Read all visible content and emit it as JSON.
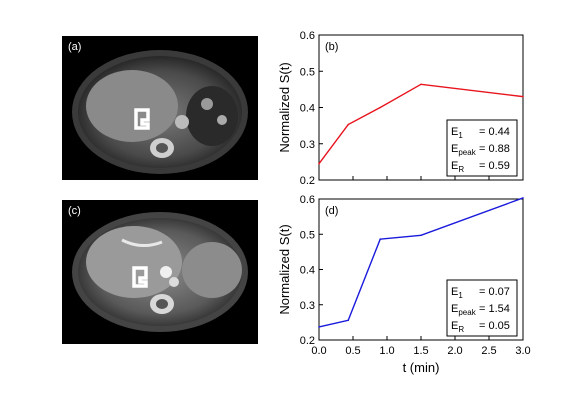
{
  "images": [
    {
      "label": "(a)",
      "description_icon": "mri-axial-abdomen"
    },
    {
      "label": "(c)",
      "description_icon": "mri-axial-abdomen-contrast"
    }
  ],
  "chart_data": [
    {
      "type": "line",
      "panel_label": "(b)",
      "x": [
        0.0,
        0.43,
        0.9,
        1.5,
        3.0
      ],
      "series": [
        {
          "color": "#e8141e",
          "values": [
            0.245,
            0.353,
            0.4,
            0.464,
            0.43
          ]
        }
      ],
      "ylabel": "Normalized S(t)",
      "xlabel": "",
      "xlim": [
        0.0,
        3.0
      ],
      "ylim": [
        0.2,
        0.6
      ],
      "yticks": [
        "0.2",
        "0.3",
        "0.4",
        "0.5",
        "0.6"
      ],
      "xticks": [],
      "annotation": [
        {
          "sym": "E",
          "sub": "1",
          "text": "= 0.44"
        },
        {
          "sym": "E",
          "sub": "peak",
          "text": "= 0.88"
        },
        {
          "sym": "E",
          "sub": "R",
          "text": "= 0.59"
        }
      ]
    },
    {
      "type": "line",
      "panel_label": "(d)",
      "x": [
        0.0,
        0.43,
        0.9,
        1.5,
        3.0
      ],
      "series": [
        {
          "color": "#1a1adc",
          "values": [
            0.237,
            0.256,
            0.486,
            0.497,
            0.603
          ]
        }
      ],
      "ylabel": "Normalized S(t)",
      "xlabel": "t (min)",
      "xlim": [
        0.0,
        3.0
      ],
      "ylim": [
        0.2,
        0.6
      ],
      "yticks": [
        "0.2",
        "0.3",
        "0.4",
        "0.5",
        "0.6"
      ],
      "xticks": [
        "0.0",
        "0.5",
        "1.0",
        "1.5",
        "2.0",
        "2.5",
        "3.0"
      ],
      "annotation": [
        {
          "sym": "E",
          "sub": "1",
          "text": "= 0.07"
        },
        {
          "sym": "E",
          "sub": "peak",
          "text": "= 1.54"
        },
        {
          "sym": "E",
          "sub": "R",
          "text": "= 0.05"
        }
      ]
    }
  ]
}
